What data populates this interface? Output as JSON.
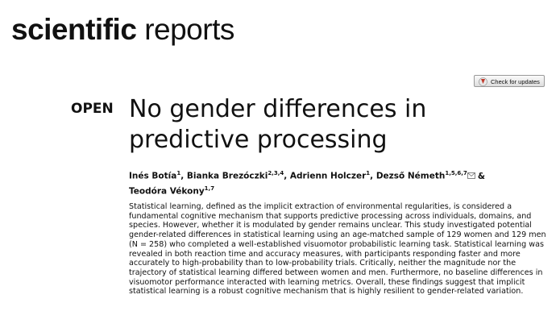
{
  "header": {
    "journal_bold": "scientific",
    "journal_light": "reports"
  },
  "badge": "Check for updates",
  "access": "OPEN",
  "title": "No gender differences in predictive processing",
  "authors": [
    {
      "name": "Inés Botía",
      "affiliations": "1",
      "separator": ","
    },
    {
      "name": "Bianka Brezóczki",
      "affiliations": "2,3,4",
      "separator": ","
    },
    {
      "name": "Adrienn Holczer",
      "affiliations": "1",
      "separator": ","
    },
    {
      "name": "Dezső Németh",
      "affiliations": "1,5,6,7",
      "separator": "&"
    },
    {
      "name": "Teodóra Vékony",
      "affiliations": "1,7",
      "separator": null
    }
  ],
  "abstract": "Statistical learning, defined as the implicit extraction of environmental regularities, is considered a fundamental cognitive mechanism that supports predictive processing across individuals, domains, and species. However, whether it is modulated by gender remains unclear. This study investigated potential gender-related differences in statistical learning using an age-matched sample of 129 women and 129 men (N = 258) who completed a well-established visuomotor probabilistic learning task. Statistical learning was revealed in both reaction time and accuracy measures, with participants responding faster and more accurately to high-probability than to low-probability trials. Critically, neither the magnitude nor the trajectory of statistical learning differed between women and men. Furthermore, no baseline differences in visuomotor performance interacted with learning metrics. Overall, these findings suggest that implicit statistical learning is a robust cognitive mechanism that is highly resilient to gender-related variation."
}
